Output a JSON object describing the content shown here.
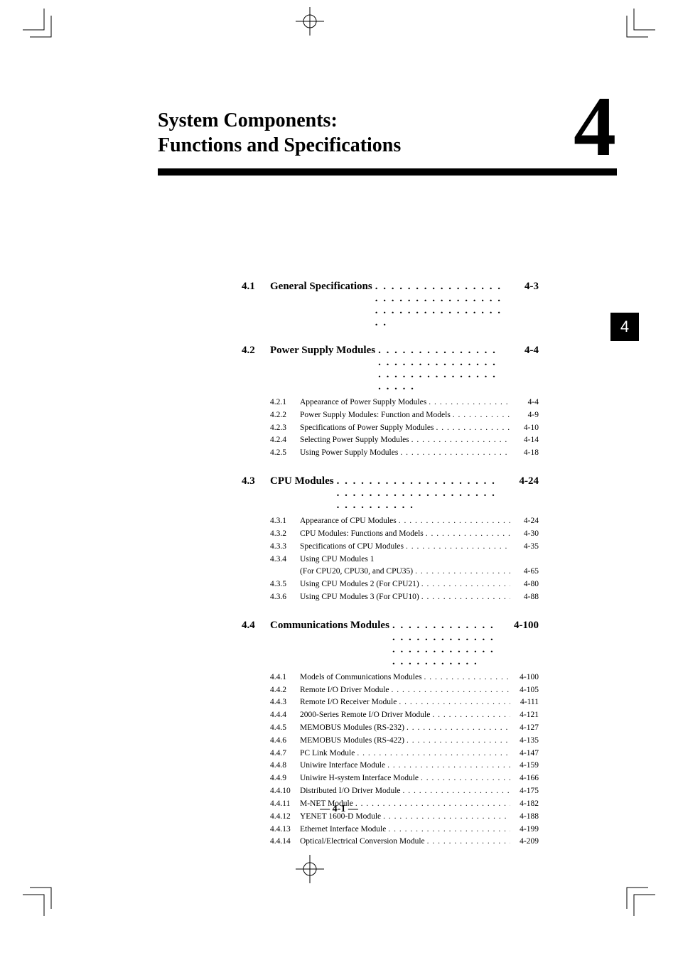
{
  "title": {
    "line1": "System Components:",
    "line2": "Functions and Specifications"
  },
  "chapter_number": "4",
  "side_tab": "4",
  "footer": "— 4-1 —",
  "colors": {
    "text": "#000000",
    "background": "#ffffff",
    "rule": "#000000",
    "tab_bg": "#000000",
    "tab_fg": "#ffffff"
  },
  "typography": {
    "title_fontsize_pt": 21,
    "chapter_number_fontsize_pt": 90,
    "section_fontsize_pt": 11,
    "sub_fontsize_pt": 8.5,
    "footer_fontsize_pt": 10.5,
    "font_family": "Times New Roman"
  },
  "toc": {
    "sections": [
      {
        "num": "4.1",
        "title": "General Specifications",
        "page": "4-3",
        "subs": []
      },
      {
        "num": "4.2",
        "title": "Power Supply Modules",
        "page": "4-4",
        "subs": [
          {
            "num": "4.2.1",
            "title": "Appearance of Power Supply Modules",
            "page": "4-4"
          },
          {
            "num": "4.2.2",
            "title": "Power Supply Modules: Function and Models",
            "page": "4-9"
          },
          {
            "num": "4.2.3",
            "title": "Specifications of Power Supply Modules",
            "page": "4-10"
          },
          {
            "num": "4.2.4",
            "title": "Selecting Power Supply Modules",
            "page": "4-14"
          },
          {
            "num": "4.2.5",
            "title": "Using Power Supply Modules",
            "page": "4-18"
          }
        ]
      },
      {
        "num": "4.3",
        "title": "CPU Modules",
        "page": "4-24",
        "subs": [
          {
            "num": "4.3.1",
            "title": "Appearance of CPU Modules",
            "page": "4-24"
          },
          {
            "num": "4.3.2",
            "title": "CPU Modules: Functions and Models",
            "page": "4-30"
          },
          {
            "num": "4.3.3",
            "title": "Specifications of CPU Modules",
            "page": "4-35"
          },
          {
            "num": "4.3.4",
            "title": "Using CPU Modules 1",
            "title2": "(For CPU20, CPU30, and CPU35)",
            "page": "4-65"
          },
          {
            "num": "4.3.5",
            "title": "Using CPU Modules 2 (For CPU21)",
            "page": "4-80"
          },
          {
            "num": "4.3.6",
            "title": "Using CPU Modules 3 (For CPU10)",
            "page": "4-88"
          }
        ]
      },
      {
        "num": "4.4",
        "title": "Communications Modules",
        "page": "4-100",
        "subs": [
          {
            "num": "4.4.1",
            "title": "Models of Communications Modules",
            "page": "4-100"
          },
          {
            "num": "4.4.2",
            "title": "Remote I/O Driver Module",
            "page": "4-105"
          },
          {
            "num": "4.4.3",
            "title": "Remote I/O Receiver Module",
            "page": "4-111"
          },
          {
            "num": "4.4.4",
            "title": "2000-Series Remote I/O Driver Module",
            "page": "4-121"
          },
          {
            "num": "4.4.5",
            "title": "MEMOBUS Modules (RS-232)",
            "page": "4-127"
          },
          {
            "num": "4.4.6",
            "title": "MEMOBUS Modules (RS-422)",
            "page": "4-135"
          },
          {
            "num": "4.4.7",
            "title": "PC Link Module",
            "page": "4-147"
          },
          {
            "num": "4.4.8",
            "title": "Uniwire Interface Module",
            "page": "4-159"
          },
          {
            "num": "4.4.9",
            "title": "Uniwire H-system Interface Module",
            "page": "4-166"
          },
          {
            "num": "4.4.10",
            "title": "Distributed I/O Driver Module",
            "page": "4-175"
          },
          {
            "num": "4.4.11",
            "title": "M-NET Module",
            "page": "4-182"
          },
          {
            "num": "4.4.12",
            "title": "YENET 1600-D Module",
            "page": "4-188"
          },
          {
            "num": "4.4.13",
            "title": "Ethernet Interface Module",
            "page": "4-199"
          },
          {
            "num": "4.4.14",
            "title": "Optical/Electrical Conversion Module",
            "page": "4-209"
          }
        ]
      }
    ]
  }
}
